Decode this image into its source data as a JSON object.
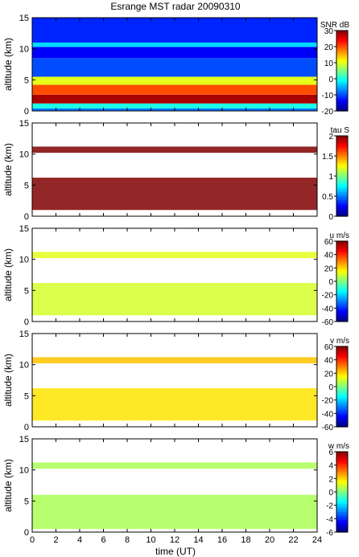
{
  "figure": {
    "title": "Esrange MST radar 20090310",
    "xlabel": "time (UT)",
    "x_ticks": [
      0,
      2,
      4,
      6,
      8,
      10,
      12,
      14,
      16,
      18,
      20,
      22,
      24
    ],
    "xlim": [
      0,
      24
    ]
  },
  "chart_data": [
    {
      "type": "heatmap",
      "title": "Esrange MST radar 20090310",
      "ylabel": "altitude (km)",
      "colorbar_label": "SNR dB",
      "xlim": [
        0,
        24
      ],
      "ylim": [
        0,
        15
      ],
      "y_ticks": [
        0,
        5,
        10,
        15
      ],
      "clim": [
        -20,
        30
      ],
      "colorbar_ticks": [
        30,
        20,
        10,
        0,
        -10,
        -20
      ],
      "layers": [
        {
          "alt_min": 0,
          "alt_max": 0.4,
          "value": -8
        },
        {
          "alt_min": 0.4,
          "alt_max": 1.2,
          "value": 0
        },
        {
          "alt_min": 1.2,
          "alt_max": 2.6,
          "value": 28
        },
        {
          "alt_min": 2.6,
          "alt_max": 4.2,
          "value": 20
        },
        {
          "alt_min": 4.2,
          "alt_max": 5.5,
          "value": 10
        },
        {
          "alt_min": 5.5,
          "alt_max": 8.5,
          "value": -10
        },
        {
          "alt_min": 8.5,
          "alt_max": 10.3,
          "value": -14
        },
        {
          "alt_min": 10.3,
          "alt_max": 11.0,
          "value": -3
        },
        {
          "alt_min": 11.0,
          "alt_max": 15,
          "value": -12
        }
      ]
    },
    {
      "type": "heatmap",
      "ylabel": "altitude (km)",
      "colorbar_label": "tau S",
      "xlim": [
        0,
        24
      ],
      "ylim": [
        0,
        15
      ],
      "y_ticks": [
        0,
        5,
        10,
        15
      ],
      "clim": [
        0,
        2
      ],
      "colorbar_ticks": [
        2,
        1.5,
        1,
        0.5,
        0
      ],
      "layers": [
        {
          "alt_min": 1.0,
          "alt_max": 6.2,
          "value": 2
        },
        {
          "alt_min": 10.2,
          "alt_max": 11.2,
          "value": 2
        }
      ]
    },
    {
      "type": "heatmap",
      "ylabel": "altitude (km)",
      "colorbar_label": "u m/s",
      "xlim": [
        0,
        24
      ],
      "ylim": [
        0,
        15
      ],
      "y_ticks": [
        0,
        5,
        10,
        15
      ],
      "clim": [
        -60,
        60
      ],
      "colorbar_ticks": [
        60,
        40,
        20,
        0,
        -20,
        -40,
        -60
      ],
      "layers": [
        {
          "alt_min": 1.0,
          "alt_max": 6.2,
          "value": 10
        },
        {
          "alt_min": 10.2,
          "alt_max": 11.2,
          "value": 12
        }
      ]
    },
    {
      "type": "heatmap",
      "ylabel": "altitude (km)",
      "colorbar_label": "v m/s",
      "xlim": [
        0,
        24
      ],
      "ylim": [
        0,
        15
      ],
      "y_ticks": [
        0,
        5,
        10,
        15
      ],
      "clim": [
        -60,
        60
      ],
      "colorbar_ticks": [
        60,
        40,
        20,
        0,
        -20,
        -40,
        -60
      ],
      "layers": [
        {
          "alt_min": 1.0,
          "alt_max": 6.2,
          "value": 18
        },
        {
          "alt_min": 10.2,
          "alt_max": 11.2,
          "value": 22
        }
      ]
    },
    {
      "type": "heatmap",
      "ylabel": "altitude (km)",
      "colorbar_label": "w m/s",
      "xlim": [
        0,
        24
      ],
      "ylim": [
        0,
        15
      ],
      "y_ticks": [
        0,
        5,
        10,
        15
      ],
      "clim": [
        -6,
        6
      ],
      "colorbar_ticks": [
        6,
        4,
        2,
        0,
        -2,
        -4,
        -6
      ],
      "layers": [
        {
          "alt_min": 0.5,
          "alt_max": 6.0,
          "value": 0.5
        },
        {
          "alt_min": 10.2,
          "alt_max": 11.2,
          "value": 0.5
        }
      ]
    }
  ]
}
